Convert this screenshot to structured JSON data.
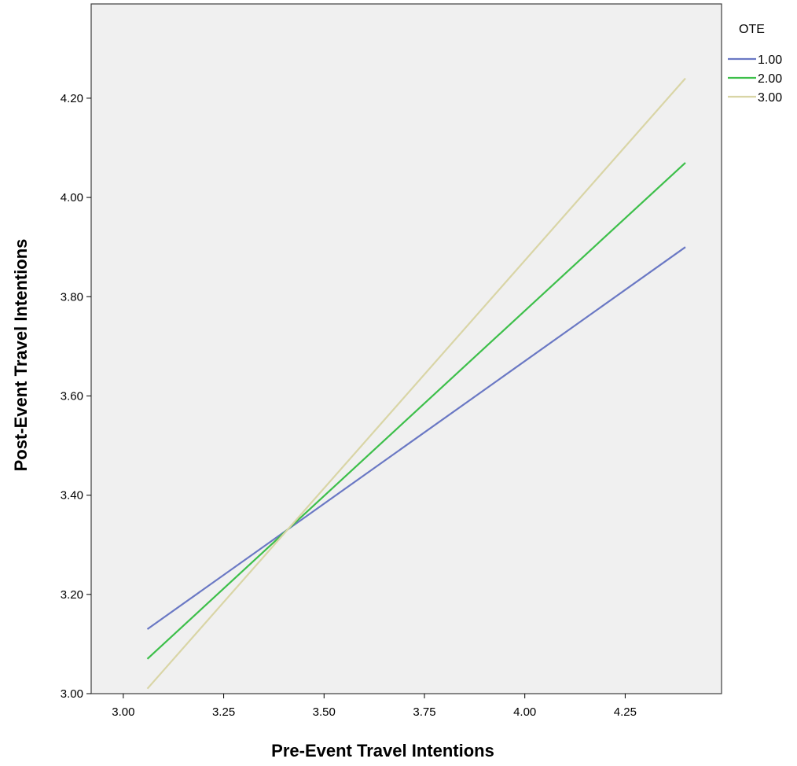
{
  "chart_data": {
    "type": "line",
    "title": "",
    "xlabel": "Pre-Event Travel Intentions",
    "ylabel": "Post-Event Travel Intentions",
    "xlim": [
      2.92,
      4.49
    ],
    "ylim": [
      3.0,
      4.39
    ],
    "grid": false,
    "plot_background": "#f0f0f0",
    "x_ticks": [
      {
        "value": 3.0,
        "label": "3.00"
      },
      {
        "value": 3.25,
        "label": "3.25"
      },
      {
        "value": 3.5,
        "label": "3.50"
      },
      {
        "value": 3.75,
        "label": "3.75"
      },
      {
        "value": 4.0,
        "label": "4.00"
      },
      {
        "value": 4.25,
        "label": "4.25"
      }
    ],
    "y_ticks": [
      {
        "value": 3.0,
        "label": "3.00"
      },
      {
        "value": 3.2,
        "label": "3.20"
      },
      {
        "value": 3.4,
        "label": "3.40"
      },
      {
        "value": 3.6,
        "label": "3.60"
      },
      {
        "value": 3.8,
        "label": "3.80"
      },
      {
        "value": 4.0,
        "label": "4.00"
      },
      {
        "value": 4.2,
        "label": "4.20"
      }
    ],
    "legend": {
      "title": "OTE",
      "position": "top-right, outside plot"
    },
    "series": [
      {
        "name": "1.00",
        "color": "#6a78c4",
        "x": [
          3.06,
          4.4
        ],
        "y": [
          3.13,
          3.9
        ]
      },
      {
        "name": "2.00",
        "color": "#3dbf4a",
        "x": [
          3.06,
          4.4
        ],
        "y": [
          3.07,
          4.07
        ]
      },
      {
        "name": "3.00",
        "color": "#d9d5a6",
        "x": [
          3.06,
          4.4
        ],
        "y": [
          3.01,
          4.24
        ]
      }
    ]
  }
}
